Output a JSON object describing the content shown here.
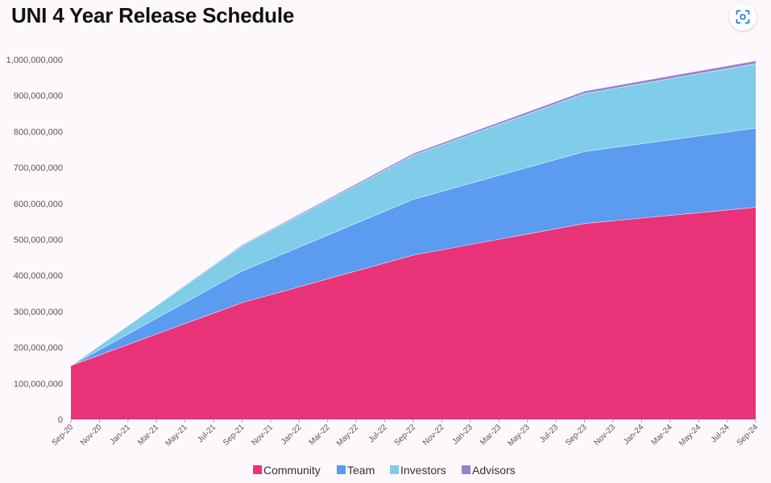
{
  "title": "UNI 4 Year Release Schedule",
  "lens_button": {
    "icon": "lens-scan-icon"
  },
  "chart_data": {
    "type": "area",
    "stacked": true,
    "title": "UNI 4 Year Release Schedule",
    "xlabel": "",
    "ylabel": "",
    "ylim": [
      0,
      1000000000
    ],
    "grid": false,
    "legend_position": "bottom",
    "y_ticks": [
      "0",
      "100,000,000",
      "200,000,000",
      "300,000,000",
      "400,000,000",
      "500,000,000",
      "600,000,000",
      "700,000,000",
      "800,000,000",
      "900,000,000",
      "1,000,000,000"
    ],
    "y_tick_values": [
      0,
      100000000,
      200000000,
      300000000,
      400000000,
      500000000,
      600000000,
      700000000,
      800000000,
      900000000,
      1000000000
    ],
    "x_tick_labels": [
      "Sep-20",
      "Nov-20",
      "Jan-21",
      "Mar-21",
      "May-21",
      "Jul-21",
      "Sep-21",
      "Nov-21",
      "Jan-22",
      "Mar-22",
      "May-22",
      "Jul-22",
      "Sep-22",
      "Nov-22",
      "Jan-23",
      "Mar-23",
      "May-23",
      "Jul-23",
      "Sep-23",
      "Nov-23",
      "Jan-24",
      "Mar-24",
      "May-24",
      "Jul-24",
      "Sep-24"
    ],
    "x": [
      "Sep-20",
      "Sep-21",
      "Sep-22",
      "Sep-23",
      "Sep-24"
    ],
    "series": [
      {
        "name": "Community",
        "color": "#e83378",
        "values": [
          150000000,
          325000000,
          457000000,
          545000000,
          590000000
        ]
      },
      {
        "name": "Team",
        "color": "#5b9bf0",
        "values": [
          0,
          88000000,
          155000000,
          200000000,
          220000000
        ]
      },
      {
        "name": "Investors",
        "color": "#80cde9",
        "values": [
          0,
          70000000,
          123000000,
          161000000,
          179000000
        ]
      },
      {
        "name": "Advisors",
        "color": "#9a7fd0",
        "values": [
          0,
          3000000,
          5000000,
          7000000,
          8000000
        ]
      }
    ]
  }
}
